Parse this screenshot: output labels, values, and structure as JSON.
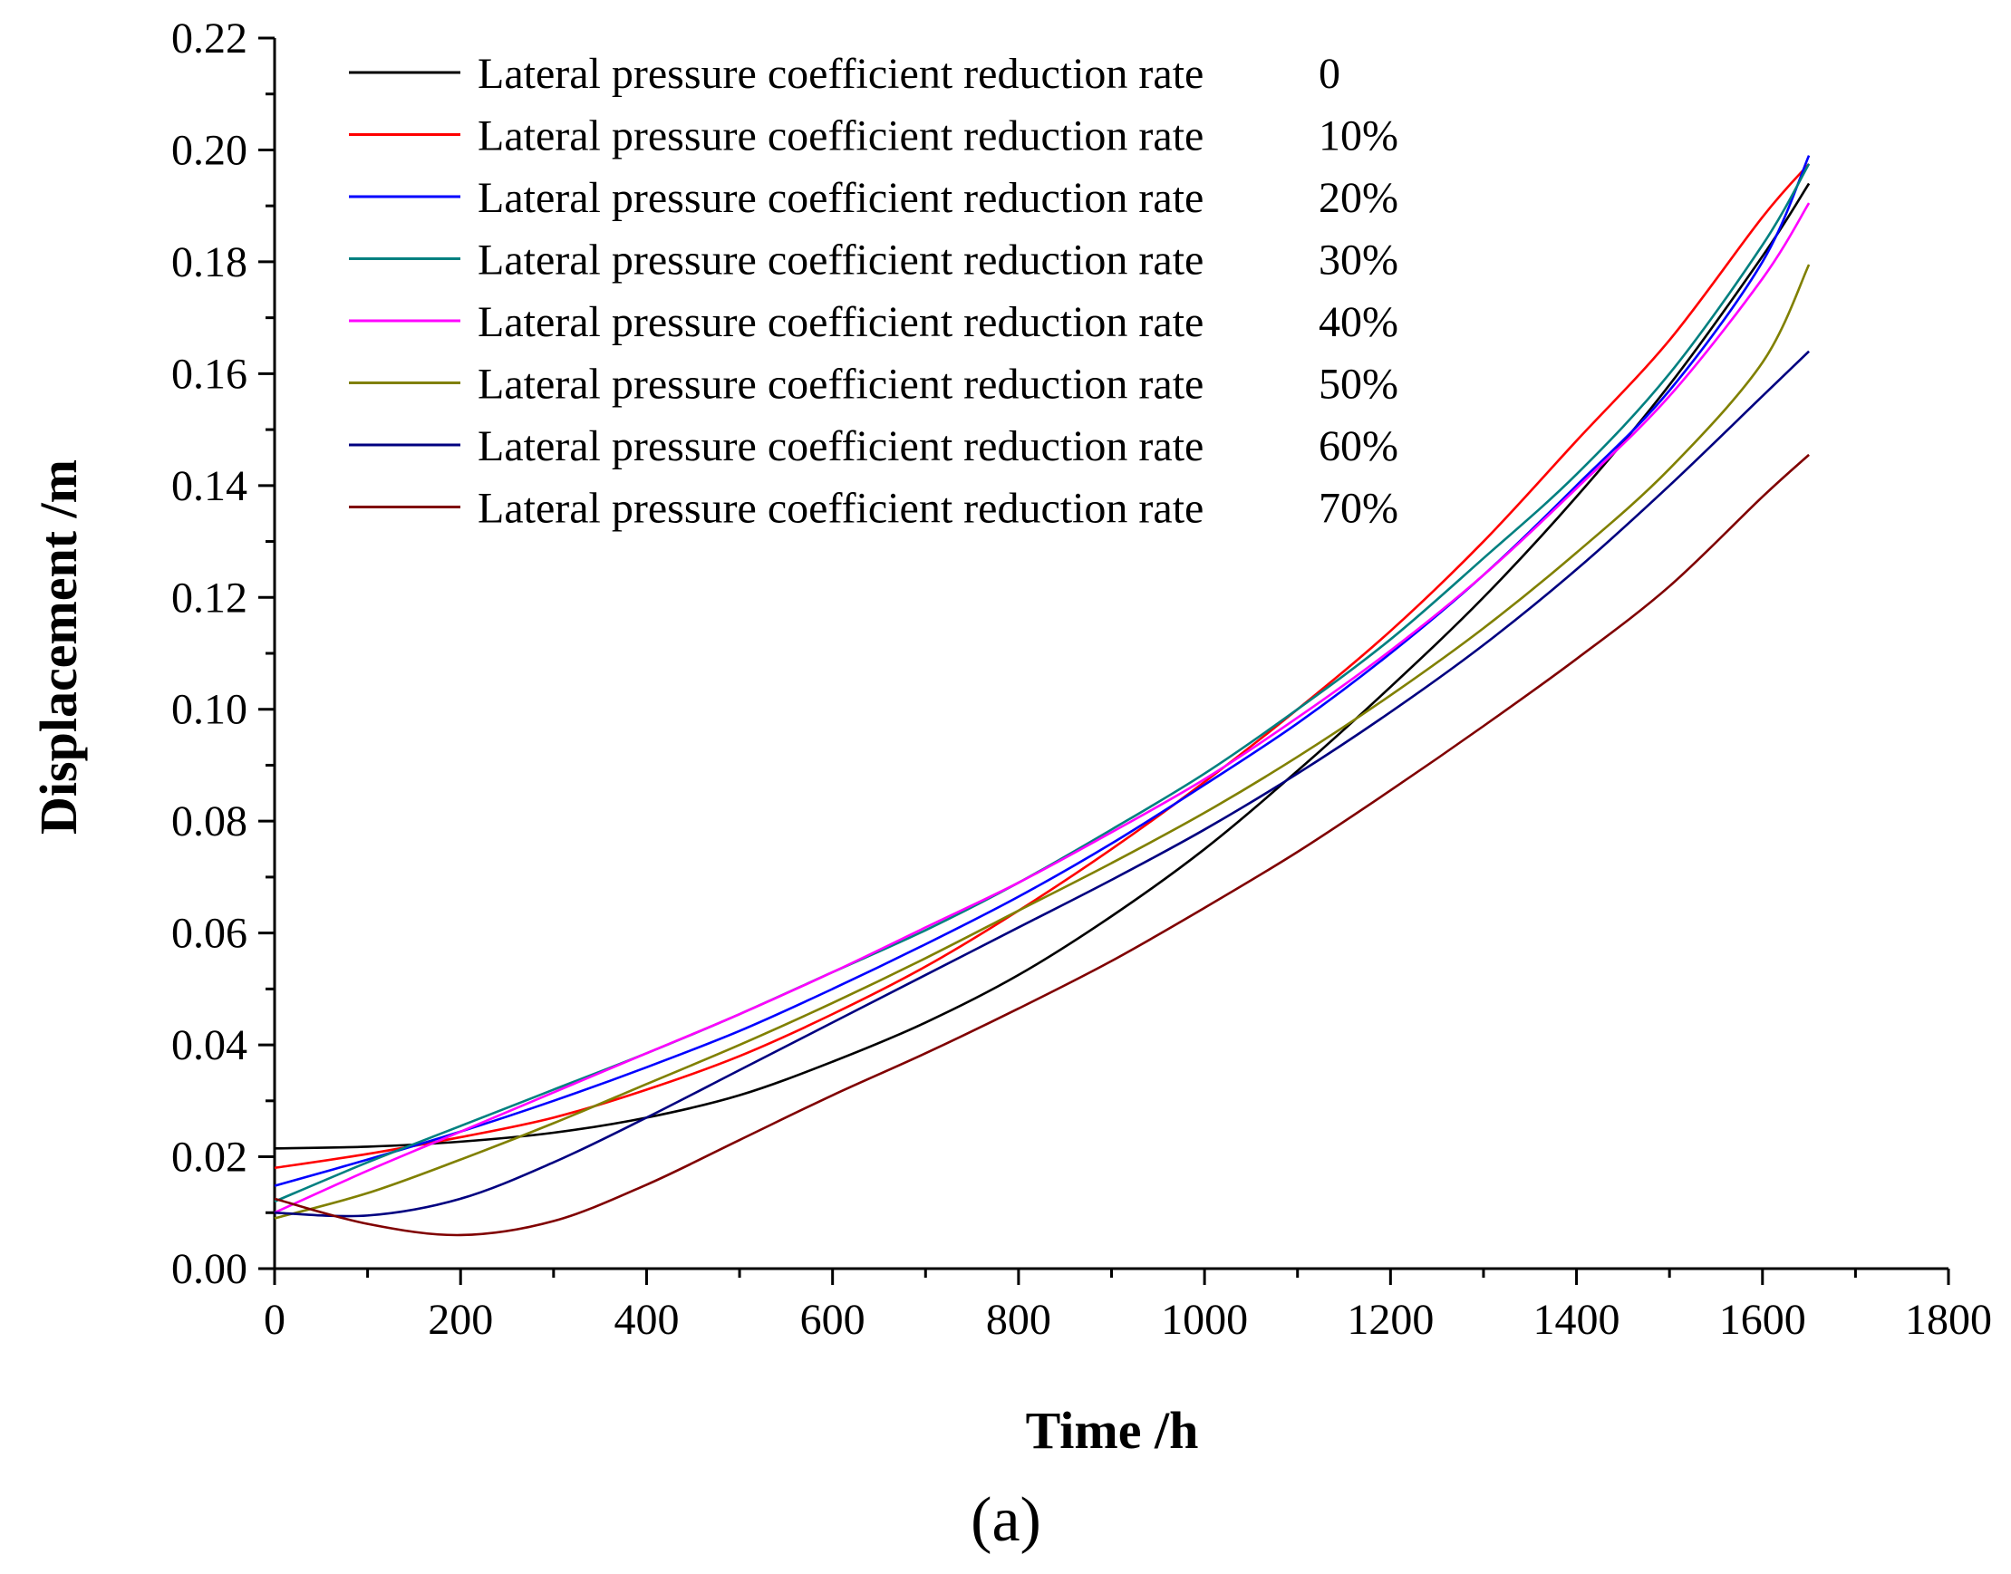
{
  "chart_data": {
    "type": "line",
    "title": "",
    "xlabel": "Time /h",
    "ylabel": "Displacement /m",
    "panel_label": "(a)",
    "xlim": [
      0,
      1800
    ],
    "ylim": [
      0,
      0.22
    ],
    "x_ticks": [
      0,
      200,
      400,
      600,
      800,
      1000,
      1200,
      1400,
      1600,
      1800
    ],
    "x_tick_labels": [
      "0",
      "200",
      "400",
      "600",
      "800",
      "1000",
      "1200",
      "1400",
      "1600",
      "1800"
    ],
    "y_ticks": [
      0,
      0.02,
      0.04,
      0.06,
      0.08,
      0.1,
      0.12,
      0.14,
      0.16,
      0.18,
      0.2,
      0.22
    ],
    "y_tick_labels": [
      "0.00",
      "0.02",
      "0.04",
      "0.06",
      "0.08",
      "0.10",
      "0.12",
      "0.14",
      "0.16",
      "0.18",
      "0.20",
      "0.22"
    ],
    "grid": false,
    "legend_position": "top-left",
    "x": [
      0,
      100,
      200,
      300,
      400,
      500,
      600,
      700,
      800,
      900,
      1000,
      1100,
      1200,
      1300,
      1400,
      1500,
      1600,
      1650
    ],
    "series": [
      {
        "name": "Lateral pressure coefficient reduction rate",
        "rate": "0",
        "color": "#000000",
        "values": [
          0.0215,
          0.0218,
          0.0227,
          0.0243,
          0.027,
          0.031,
          0.037,
          0.044,
          0.0525,
          0.063,
          0.075,
          0.089,
          0.104,
          0.12,
          0.138,
          0.158,
          0.181,
          0.194
        ]
      },
      {
        "name": "Lateral pressure coefficient reduction rate",
        "rate": "10%",
        "color": "#ff0000",
        "values": [
          0.018,
          0.0205,
          0.0235,
          0.027,
          0.032,
          0.038,
          0.0455,
          0.054,
          0.064,
          0.075,
          0.087,
          0.1,
          0.114,
          0.13,
          0.148,
          0.166,
          0.188,
          0.1975
        ]
      },
      {
        "name": "Lateral pressure coefficient reduction rate",
        "rate": "20%",
        "color": "#0000ff",
        "values": [
          0.0148,
          0.0195,
          0.0245,
          0.03,
          0.036,
          0.0425,
          0.05,
          0.058,
          0.0665,
          0.076,
          0.0865,
          0.0975,
          0.11,
          0.124,
          0.14,
          0.157,
          0.18,
          0.199
        ]
      },
      {
        "name": "Lateral pressure coefficient reduction rate",
        "rate": "30%",
        "color": "#008080",
        "values": [
          0.012,
          0.019,
          0.0255,
          0.032,
          0.0385,
          0.0455,
          0.053,
          0.0605,
          0.069,
          0.0785,
          0.0885,
          0.1,
          0.1125,
          0.127,
          0.142,
          0.16,
          0.183,
          0.1975
        ]
      },
      {
        "name": "Lateral pressure coefficient reduction rate",
        "rate": "40%",
        "color": "#ff00ff",
        "values": [
          0.01,
          0.0175,
          0.0245,
          0.0315,
          0.0385,
          0.0455,
          0.053,
          0.061,
          0.069,
          0.078,
          0.0875,
          0.0985,
          0.1105,
          0.124,
          0.1395,
          0.156,
          0.177,
          0.1905
        ]
      },
      {
        "name": "Lateral pressure coefficient reduction rate",
        "rate": "50%",
        "color": "#808000",
        "values": [
          0.009,
          0.0135,
          0.0195,
          0.026,
          0.033,
          0.04,
          0.0475,
          0.0555,
          0.064,
          0.0725,
          0.0815,
          0.0915,
          0.1025,
          0.1145,
          0.128,
          0.143,
          0.162,
          0.1795
        ]
      },
      {
        "name": "Lateral pressure coefficient reduction rate",
        "rate": "60%",
        "color": "#000080",
        "values": [
          0.01,
          0.0095,
          0.0125,
          0.019,
          0.027,
          0.0355,
          0.044,
          0.0525,
          0.061,
          0.0695,
          0.0785,
          0.0885,
          0.0995,
          0.1115,
          0.125,
          0.14,
          0.156,
          0.164
        ]
      },
      {
        "name": "Lateral pressure coefficient reduction rate",
        "rate": "70%",
        "color": "#800000",
        "values": [
          0.0125,
          0.008,
          0.006,
          0.0085,
          0.015,
          0.023,
          0.031,
          0.0385,
          0.0465,
          0.055,
          0.0645,
          0.0745,
          0.0855,
          0.097,
          0.109,
          0.122,
          0.138,
          0.1455
        ]
      }
    ]
  }
}
